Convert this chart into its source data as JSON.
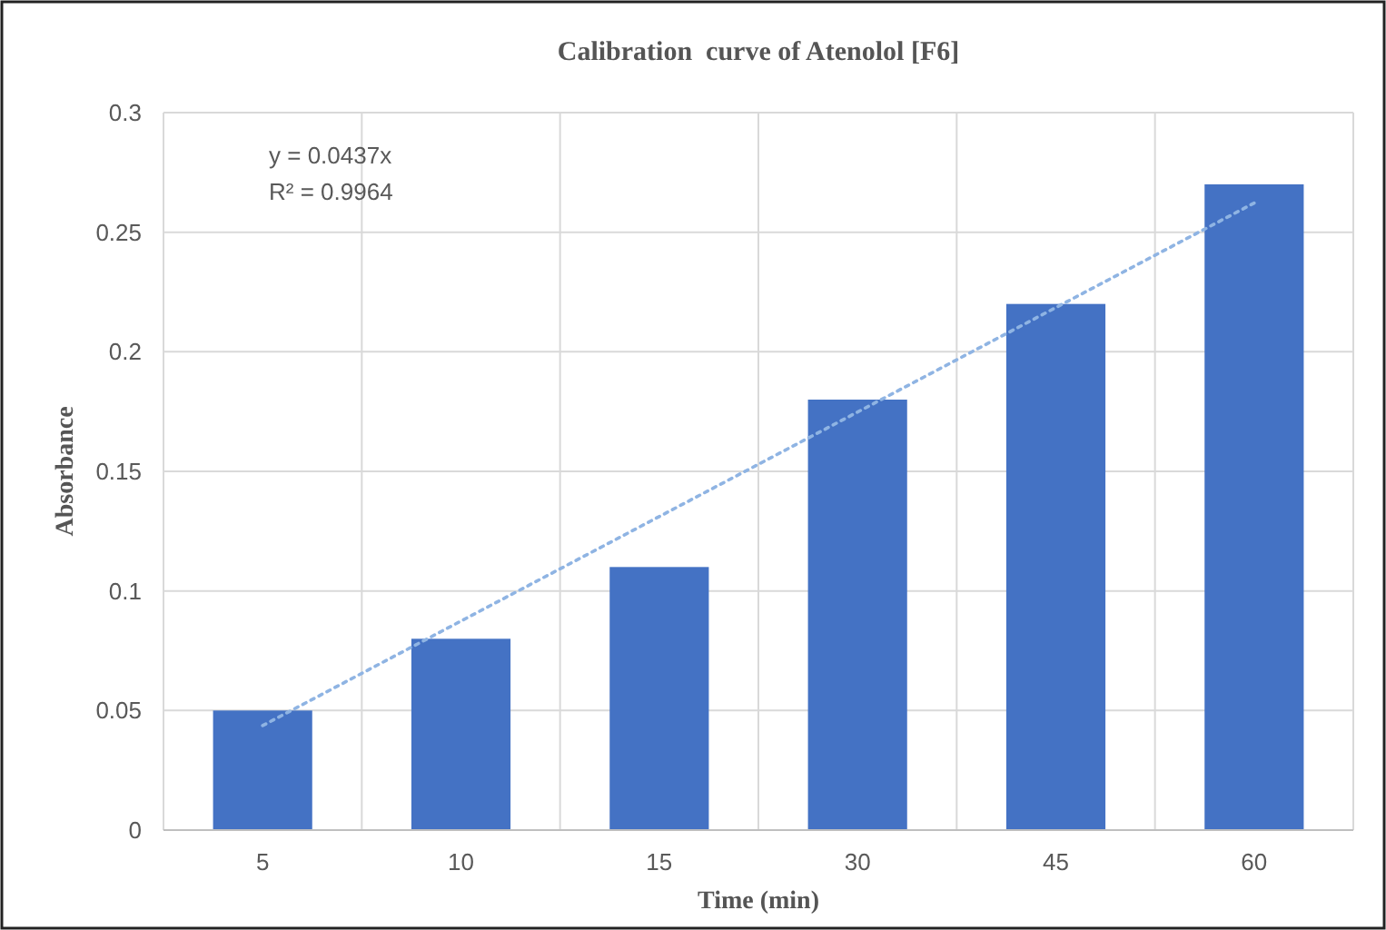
{
  "chart_data": {
    "type": "bar",
    "title": "Calibration  curve of Atenolol [F6]",
    "xlabel": "Time (min)",
    "ylabel": "Absorbance",
    "categories": [
      "5",
      "10",
      "15",
      "30",
      "45",
      "60"
    ],
    "series": [
      {
        "color": "#4472c4",
        "values": [
          0.05,
          0.08,
          0.11,
          0.18,
          0.22,
          0.27
        ]
      },
      {
        "type": "line",
        "color": "#8fb4e3",
        "line_style": "dotted",
        "x": [
          "5",
          "60"
        ],
        "values": [
          0.0437,
          0.2622
        ]
      }
    ],
    "ylim": [
      0,
      0.3
    ],
    "yticks": [
      0,
      0.05,
      0.1,
      0.15,
      0.2,
      0.25,
      0.3
    ],
    "grid": true,
    "annotations": [
      "y = 0.0437x",
      "R² = 0.9964"
    ]
  }
}
